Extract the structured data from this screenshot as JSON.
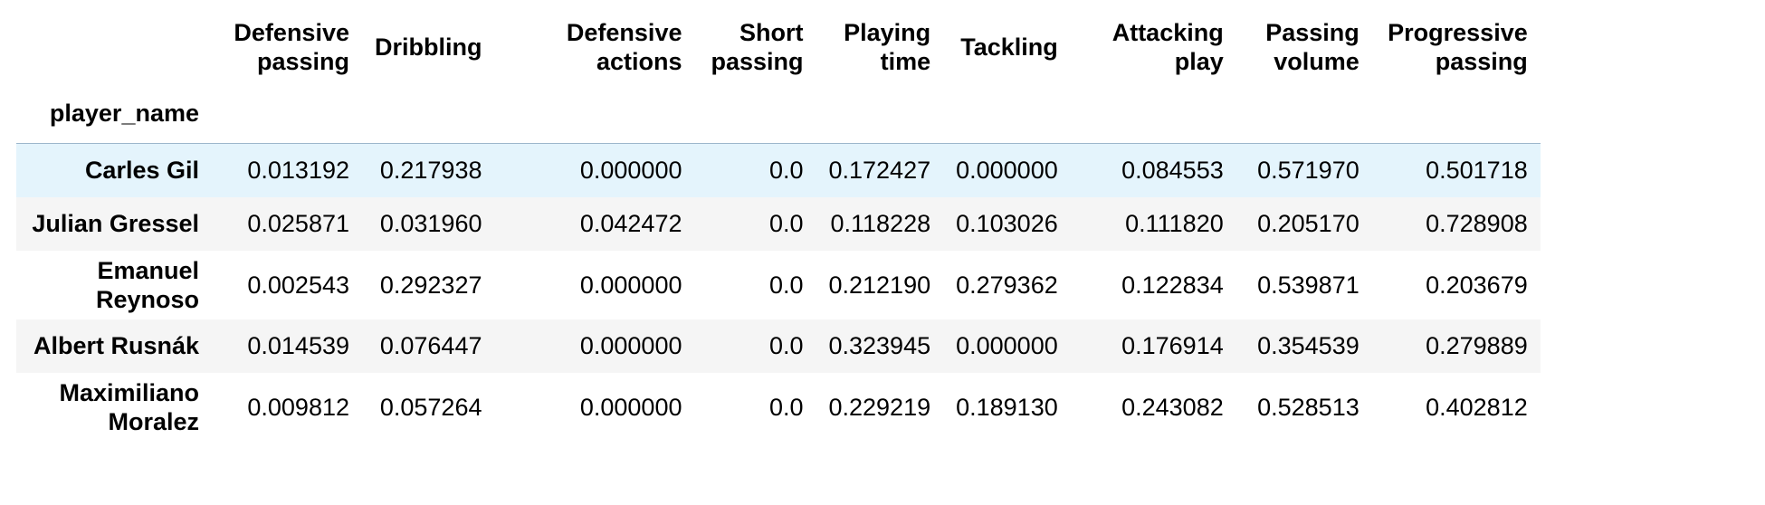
{
  "table": {
    "index_name": "player_name",
    "columns": [
      {
        "line1": "Defensive",
        "line2": "passing"
      },
      {
        "line1": "",
        "line2": "Dribbling"
      },
      {
        "line1": "Defensive",
        "line2": "actions"
      },
      {
        "line1": "Short",
        "line2": "passing"
      },
      {
        "line1": "Playing",
        "line2": "time"
      },
      {
        "line1": "",
        "line2": "Tackling"
      },
      {
        "line1": "Attacking",
        "line2": "play"
      },
      {
        "line1": "Passing",
        "line2": "volume"
      },
      {
        "line1": "Progressive",
        "line2": "passing"
      }
    ],
    "rows": [
      {
        "name_line1": "Carles Gil",
        "name_line2": "",
        "values": [
          "0.013192",
          "0.217938",
          "0.000000",
          "0.0",
          "0.172427",
          "0.000000",
          "0.084553",
          "0.571970",
          "0.501718"
        ]
      },
      {
        "name_line1": "Julian Gressel",
        "name_line2": "",
        "values": [
          "0.025871",
          "0.031960",
          "0.042472",
          "0.0",
          "0.118228",
          "0.103026",
          "0.111820",
          "0.205170",
          "0.728908"
        ]
      },
      {
        "name_line1": "Emanuel",
        "name_line2": "Reynoso",
        "values": [
          "0.002543",
          "0.292327",
          "0.000000",
          "0.0",
          "0.212190",
          "0.279362",
          "0.122834",
          "0.539871",
          "0.203679"
        ]
      },
      {
        "name_line1": "Albert Rusnák",
        "name_line2": "",
        "values": [
          "0.014539",
          "0.076447",
          "0.000000",
          "0.0",
          "0.323945",
          "0.000000",
          "0.176914",
          "0.354539",
          "0.279889"
        ]
      },
      {
        "name_line1": "Maximiliano",
        "name_line2": "Moralez",
        "values": [
          "0.009812",
          "0.057264",
          "0.000000",
          "0.0",
          "0.229219",
          "0.189130",
          "0.243082",
          "0.528513",
          "0.402812"
        ]
      }
    ],
    "hover_row_color": "#e4f4fc",
    "stripe_color": "#f5f5f5"
  }
}
